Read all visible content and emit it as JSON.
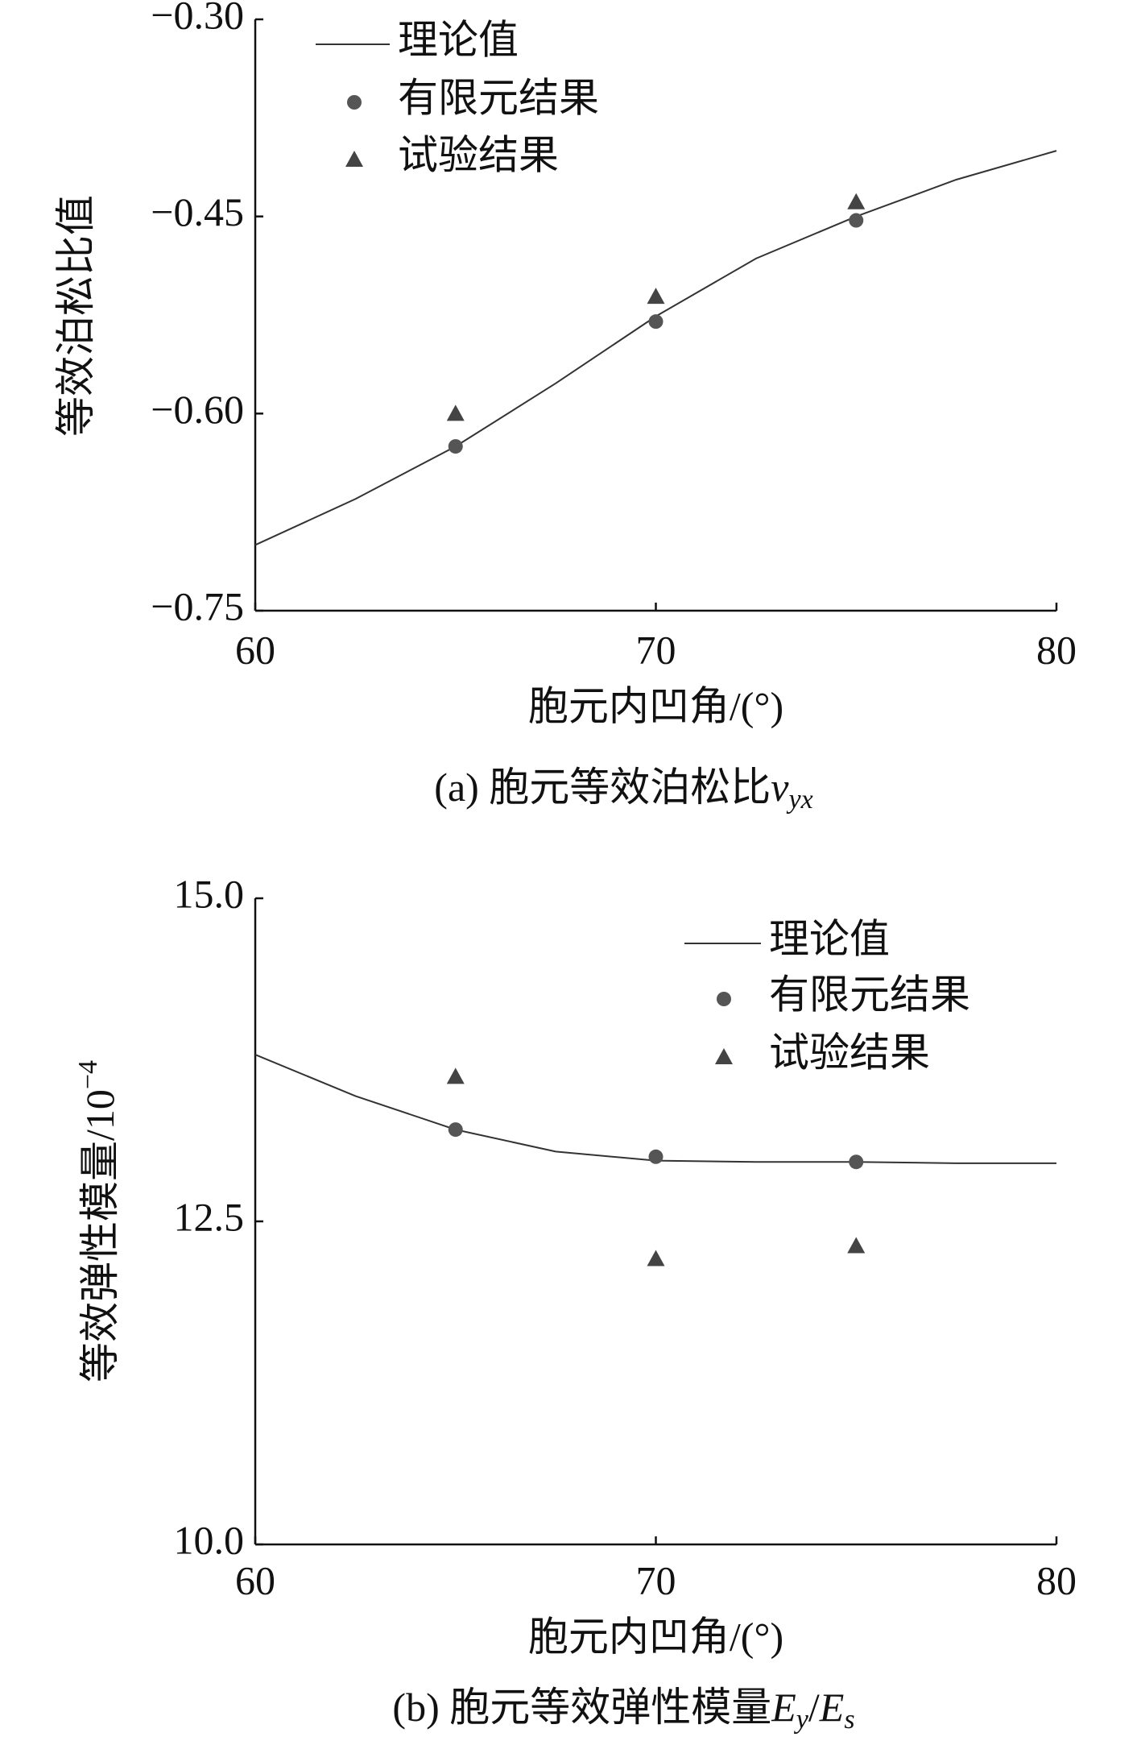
{
  "chart_data": [
    {
      "type": "line",
      "ylabel": [
        {
          "text": "等效泊松比值"
        }
      ],
      "xlabel": "胞元内凹角/(°)",
      "caption": [
        {
          "text": "(a) 胞元等效泊松比"
        },
        {
          "text": "v",
          "italic": true
        },
        {
          "text": "yx",
          "italic": true,
          "sub": true
        }
      ],
      "xlim": [
        60,
        80
      ],
      "xticks": [
        60,
        70,
        80
      ],
      "ylim": [
        -0.75,
        -0.3
      ],
      "yticks": [
        {
          "value": -0.75,
          "label": "−0.75"
        },
        {
          "value": -0.6,
          "label": "−0.60"
        },
        {
          "value": -0.45,
          "label": "−0.45"
        },
        {
          "value": -0.3,
          "label": "−0.30"
        }
      ],
      "legend": "upper left",
      "series": [
        {
          "name": "理论值",
          "color": "#333333",
          "marker": "none",
          "x": [
            60,
            62.5,
            65,
            67.5,
            70,
            72.5,
            75,
            77.5,
            80
          ],
          "values": [
            -0.7,
            -0.665,
            -0.625,
            -0.577,
            -0.526,
            -0.482,
            -0.45,
            -0.422,
            -0.4
          ]
        },
        {
          "name": "有限元结果",
          "color": "#555555",
          "marker": "circle",
          "x": [
            65,
            70,
            75
          ],
          "values": [
            -0.625,
            -0.53,
            -0.453
          ]
        },
        {
          "name": "试验结果",
          "color": "#444444",
          "marker": "triangle",
          "x": [
            65,
            70,
            75
          ],
          "values": [
            -0.6,
            -0.511,
            -0.439
          ]
        }
      ]
    },
    {
      "type": "line",
      "ylabel": [
        {
          "text": "等效弹性模量/10"
        },
        {
          "text": "−4",
          "sup": true
        }
      ],
      "xlabel": "胞元内凹角/(°)",
      "caption": [
        {
          "text": "(b) 胞元等效弹性模量"
        },
        {
          "text": "E",
          "italic": true
        },
        {
          "text": "y",
          "italic": true,
          "sub": true
        },
        {
          "text": "/"
        },
        {
          "text": "E",
          "italic": true
        },
        {
          "text": "s",
          "italic": true,
          "sub": true
        }
      ],
      "xlim": [
        60,
        80
      ],
      "xticks": [
        60,
        70,
        80
      ],
      "ylim": [
        10,
        15
      ],
      "yticks": [
        {
          "value": 10,
          "label": "10.0"
        },
        {
          "value": 12.5,
          "label": "12.5"
        },
        {
          "value": 15,
          "label": "15.0"
        }
      ],
      "legend": "upper right",
      "series": [
        {
          "name": "理论值",
          "color": "#333333",
          "marker": "none",
          "x": [
            60,
            62.5,
            65,
            67.5,
            70,
            72.5,
            75,
            77.5,
            80
          ],
          "values": [
            13.79,
            13.47,
            13.21,
            13.04,
            12.97,
            12.96,
            12.96,
            12.95,
            12.95
          ]
        },
        {
          "name": "有限元结果",
          "color": "#555555",
          "marker": "circle",
          "x": [
            65,
            70,
            75
          ],
          "values": [
            13.21,
            13.0,
            12.96
          ]
        },
        {
          "name": "试验结果",
          "color": "#444444",
          "marker": "triangle",
          "x": [
            65,
            70,
            75
          ],
          "values": [
            13.62,
            12.21,
            12.31
          ]
        }
      ]
    }
  ]
}
